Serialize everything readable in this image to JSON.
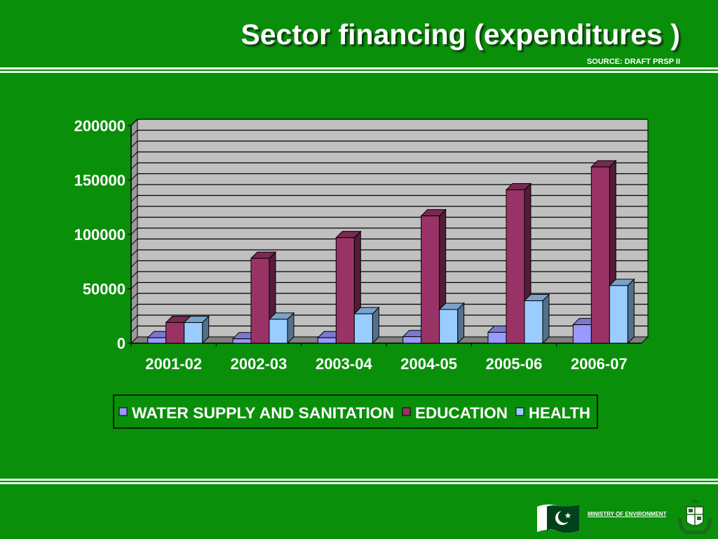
{
  "header": {
    "title": "Sector financing (expenditures )",
    "source": "SOURCE: DRAFT PRSP II"
  },
  "footer": {
    "ministry": "MINISTRY OF ENVIRONMENT"
  },
  "colors": {
    "background": "#0a8f0a",
    "plot_area": "#c0c0c0",
    "water": "#9999ff",
    "education": "#993366",
    "health": "#99ccff"
  },
  "chart_data": {
    "type": "bar",
    "categories": [
      "2001-02",
      "2002-03",
      "2003-04",
      "2004-05",
      "2005-06",
      "2006-07"
    ],
    "series": [
      {
        "name": "WATER SUPPLY AND SANITATION",
        "values": [
          5000,
          4000,
          5000,
          6000,
          10000,
          17000
        ]
      },
      {
        "name": "EDUCATION",
        "values": [
          19000,
          78000,
          97000,
          117000,
          141000,
          162000
        ]
      },
      {
        "name": "HEALTH",
        "values": [
          19000,
          22000,
          27000,
          31000,
          39000,
          53000
        ]
      }
    ],
    "yticks": [
      "0",
      "50000",
      "100000",
      "150000",
      "200000"
    ],
    "ylim": [
      0,
      200000
    ],
    "grid": true,
    "legend_position": "bottom"
  }
}
